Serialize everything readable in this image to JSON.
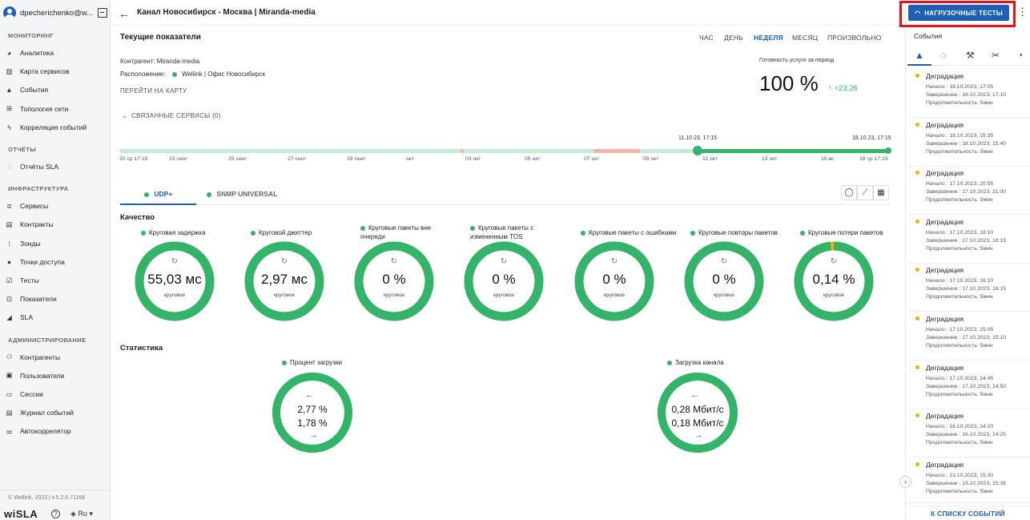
{
  "colors": {
    "accent": "#1e5fb8",
    "ok": "#34b36b",
    "warn": "#f0b400",
    "alert": "#e8121c"
  },
  "user": {
    "name": "dpecherichenko@w..."
  },
  "sidebar": {
    "sections": [
      {
        "label": "МОНИТОРИНГ",
        "items": [
          {
            "label": "Аналитика",
            "icon": "pie-chart-icon"
          },
          {
            "label": "Карта сервисов",
            "icon": "map-icon"
          },
          {
            "label": "События",
            "icon": "warning-icon"
          },
          {
            "label": "Топология сети",
            "icon": "topology-icon"
          },
          {
            "label": "Корреляция событий",
            "icon": "bolt-icon"
          }
        ]
      },
      {
        "label": "ОТЧЁТЫ",
        "items": [
          {
            "label": "Отчёты SLA",
            "icon": "report-icon"
          }
        ]
      },
      {
        "label": "ИНФРАСТРУКТУРА",
        "items": [
          {
            "label": "Сервисы",
            "icon": "list-icon"
          },
          {
            "label": "Контракты",
            "icon": "document-icon"
          },
          {
            "label": "Зонды",
            "icon": "probe-icon"
          },
          {
            "label": "Точки доступа",
            "icon": "circle-icon"
          },
          {
            "label": "Тесты",
            "icon": "checkbox-icon"
          },
          {
            "label": "Показатели",
            "icon": "metrics-icon"
          },
          {
            "label": "SLA",
            "icon": "sla-icon"
          }
        ]
      },
      {
        "label": "АДМИНИСТРИРОВАНИЕ",
        "items": [
          {
            "label": "Контрагенты",
            "icon": "people-icon"
          },
          {
            "label": "Пользователи",
            "icon": "user-card-icon"
          },
          {
            "label": "Сессии",
            "icon": "window-icon"
          },
          {
            "label": "Журнал событий",
            "icon": "journal-icon"
          },
          {
            "label": "Автокоррелятор",
            "icon": "sliders-icon"
          }
        ]
      }
    ],
    "copyright": "© Wellink, 2023 | v.5.2.0.71166",
    "logo": "wiSLA",
    "lang": "Ru"
  },
  "header": {
    "title": "Канал Новосибирск - Москва | Miranda-media"
  },
  "main": {
    "current_title": "Текущие показатели",
    "periods": [
      "ЧАС",
      "ДЕНЬ",
      "НЕДЕЛЯ",
      "МЕСЯЦ",
      "ПРОИЗВОЛЬНО"
    ],
    "active_period": "НЕДЕЛЯ",
    "contractor": "Контрагент: Miranda-media",
    "location_label": "Расположение:",
    "location_value": "Wellink | Офис Новосибирск",
    "map_link": "ПЕРЕЙТИ НА КАРТУ",
    "related": "СВЯЗАННЫЕ СЕРВИСЫ (0)",
    "availability_label": "Готовность услуги за период",
    "availability": "100 %",
    "availability_delta": "↑ +23,26",
    "timeline": {
      "start": "11.10.23, 17:15",
      "end": "18.10.23, 17:15",
      "labels": [
        "20 ср 17:15",
        "23 сент",
        "25 сент",
        "27 сент",
        "29 сент",
        "окт",
        "03 окт",
        "05 окт",
        "07 окт",
        "09 окт",
        "11 окт",
        "13 окт",
        "15 вс",
        "18 ср 17:15"
      ]
    },
    "tabs": [
      "UDP+",
      "SNMP UNIVERSAL"
    ],
    "quality_title": "Качество",
    "metrics": [
      {
        "label": "Круговая задержка",
        "value": "55,03 мс",
        "sub": "круговое",
        "fill": 1.0
      },
      {
        "label": "Круговой джиттер",
        "value": "2,97 мс",
        "sub": "круговое",
        "fill": 1.0
      },
      {
        "label": "Круговые пакеты вне очереди",
        "value": "0 %",
        "sub": "круговое",
        "fill": 1.0
      },
      {
        "label": "Круговые пакеты с измененным TOS",
        "value": "0 %",
        "sub": "круговое",
        "fill": 1.0
      },
      {
        "label": "Круговые пакеты с ошибками",
        "value": "0 %",
        "sub": "круговое",
        "fill": 1.0
      },
      {
        "label": "Круговые повторы пакетов",
        "value": "0 %",
        "sub": "круговое",
        "fill": 1.0
      },
      {
        "label": "Круговые потери пакетов",
        "value": "0,14 %",
        "sub": "круговое",
        "fill": 0.985
      }
    ],
    "stats_title": "Статистика",
    "stats": [
      {
        "label": "Процент загрузки",
        "in": "2,77 %",
        "out": "1,78 %"
      },
      {
        "label": "Загрузка канала",
        "in": "0,28 Мбит/с",
        "out": "0,18 Мбит/с"
      }
    ]
  },
  "right": {
    "load_tests": "НАГРУЗОЧНЫЕ ТЕСТЫ",
    "events_title": "События",
    "events": [
      {
        "title": "Деградация",
        "start": "Начало : 18.10.2023, 17:05",
        "end": "Завершение : 18.10.2023, 17:10",
        "dur": "Продолжительность: 5мин"
      },
      {
        "title": "Деградация",
        "start": "Начало : 18.10.2023, 15:35",
        "end": "Завершение : 18.10.2023, 15:40",
        "dur": "Продолжительность: 5мин"
      },
      {
        "title": "Деградация",
        "start": "Начало : 17.10.2023, 20:55",
        "end": "Завершение : 17.10.2023, 21:00",
        "dur": "Продолжительность: 5мин"
      },
      {
        "title": "Деградация",
        "start": "Начало : 17.10.2023, 18:10",
        "end": "Завершение : 17.10.2023, 18:15",
        "dur": "Продолжительность: 5мин"
      },
      {
        "title": "Деградация",
        "start": "Начало : 17.10.2023, 16:10",
        "end": "Завершение : 17.10.2023, 16:15",
        "dur": "Продолжительность: 5мин"
      },
      {
        "title": "Деградация",
        "start": "Начало : 17.10.2023, 15:05",
        "end": "Завершение : 17.10.2023, 15:10",
        "dur": "Продолжительность: 5мин"
      },
      {
        "title": "Деградация",
        "start": "Начало : 17.10.2023, 14:45",
        "end": "Завершение : 17.10.2023, 14:50",
        "dur": "Продолжительность: 5мин"
      },
      {
        "title": "Деградация",
        "start": "Начало : 16.10.2023, 14:20",
        "end": "Завершение : 16.10.2023, 14:25",
        "dur": "Продолжительность: 5мин"
      },
      {
        "title": "Деградация",
        "start": "Начало : 13.10.2023, 15:30",
        "end": "Завершение : 13.10.2023, 15:35",
        "dur": "Продолжительность: 5мин"
      }
    ],
    "to_events": "К СПИСКУ СОБЫТИЙ"
  }
}
